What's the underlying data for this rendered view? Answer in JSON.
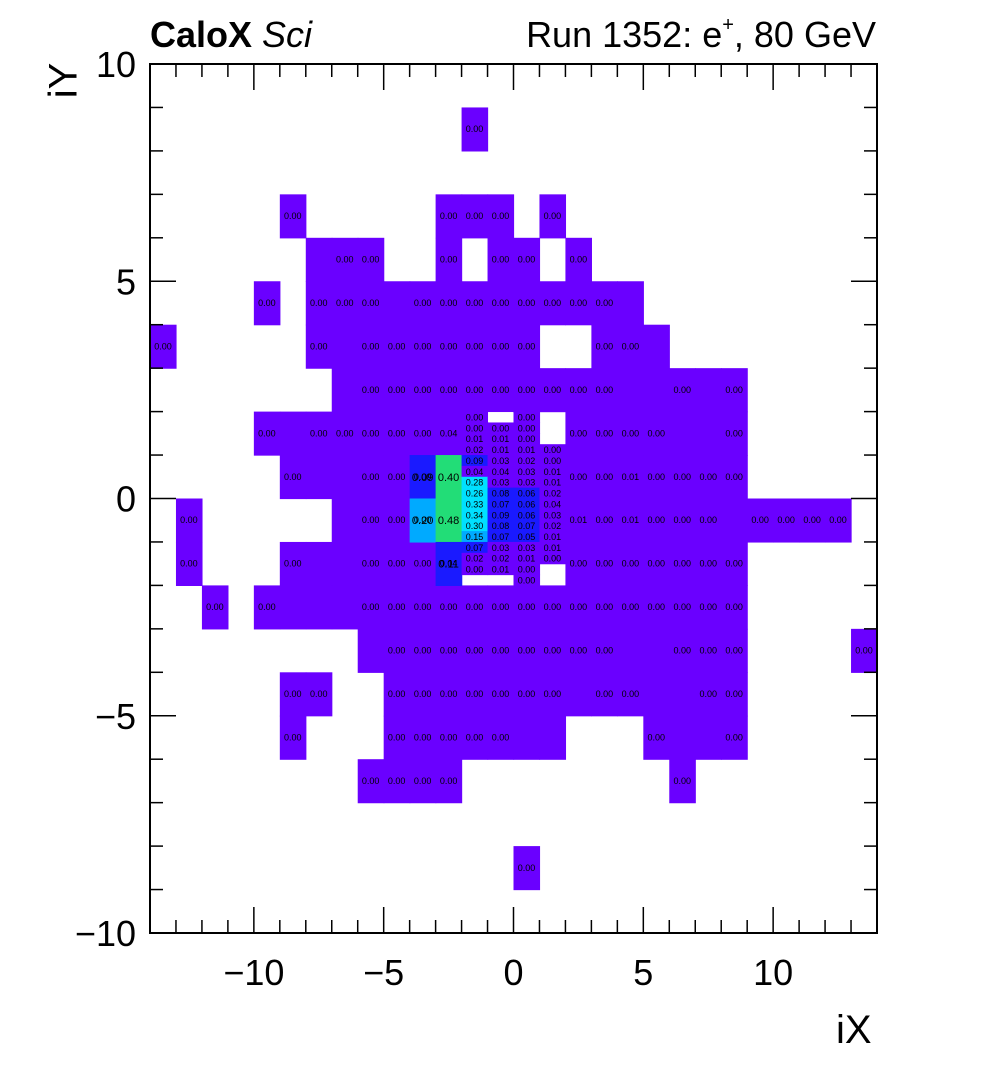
{
  "header": {
    "experiment_bold": "CaloX",
    "experiment_italic": "Sci",
    "run_prefix": "Run 1352: e",
    "run_sup": "+",
    "run_suffix": ", 80 GeV"
  },
  "chart_data": {
    "type": "heatmap",
    "xlabel": "iX",
    "ylabel": "iY",
    "xlim": [
      -14,
      14
    ],
    "ylim": [
      -10,
      10
    ],
    "xticks": [
      -10,
      -5,
      0,
      5,
      10
    ],
    "yticks": [
      -10,
      -5,
      0,
      5,
      10
    ],
    "xtick_labels": [
      "−10",
      "−5",
      "0",
      "5",
      "10"
    ],
    "ytick_labels": [
      "−10",
      "−5",
      "0",
      "5",
      "10"
    ],
    "colors": {
      "zero": "#6a00ff",
      "low": "#1a1aff",
      "mid": "#00aaff",
      "midhigh": "#00e0ff",
      "high": "#22dd77"
    },
    "coarse_cells": [
      {
        "x": -2,
        "y": 8,
        "v": 0.0
      },
      {
        "x": -9,
        "y": 6,
        "v": 0.0
      },
      {
        "x": -3,
        "y": 6,
        "v": 0.0
      },
      {
        "x": -2,
        "y": 6,
        "v": 0.0
      },
      {
        "x": -1,
        "y": 6,
        "v": 0.0
      },
      {
        "x": 1,
        "y": 6,
        "v": 0.0
      },
      {
        "x": -7,
        "y": 5,
        "v": 0.0
      },
      {
        "x": -6,
        "y": 5,
        "v": 0.0
      },
      {
        "x": -3,
        "y": 5,
        "v": 0.0
      },
      {
        "x": -1,
        "y": 5,
        "v": 0.0
      },
      {
        "x": 0,
        "y": 5,
        "v": 0.0
      },
      {
        "x": 2,
        "y": 5,
        "v": 0.0
      },
      {
        "x": -10,
        "y": 4,
        "v": 0.0
      },
      {
        "x": -8,
        "y": 4,
        "v": 0.0
      },
      {
        "x": -7,
        "y": 4,
        "v": 0.0
      },
      {
        "x": -6,
        "y": 4,
        "v": 0.0
      },
      {
        "x": -4,
        "y": 4,
        "v": 0.0
      },
      {
        "x": -3,
        "y": 4,
        "v": 0.0
      },
      {
        "x": -2,
        "y": 4,
        "v": 0.0
      },
      {
        "x": -1,
        "y": 4,
        "v": 0.0
      },
      {
        "x": 0,
        "y": 4,
        "v": 0.0
      },
      {
        "x": 1,
        "y": 4,
        "v": 0.0
      },
      {
        "x": 2,
        "y": 4,
        "v": 0.0
      },
      {
        "x": 3,
        "y": 4,
        "v": 0.0
      },
      {
        "x": -14,
        "y": 3,
        "v": 0.0
      },
      {
        "x": -8,
        "y": 3,
        "v": 0.0
      },
      {
        "x": -6,
        "y": 3,
        "v": 0.0
      },
      {
        "x": -5,
        "y": 3,
        "v": 0.0
      },
      {
        "x": -4,
        "y": 3,
        "v": 0.0
      },
      {
        "x": -3,
        "y": 3,
        "v": 0.0
      },
      {
        "x": -2,
        "y": 3,
        "v": 0.0
      },
      {
        "x": -1,
        "y": 3,
        "v": 0.0
      },
      {
        "x": 0,
        "y": 3,
        "v": 0.0
      },
      {
        "x": 3,
        "y": 3,
        "v": 0.0
      },
      {
        "x": 4,
        "y": 3,
        "v": 0.0
      },
      {
        "x": -6,
        "y": 2,
        "v": 0.0
      },
      {
        "x": -5,
        "y": 2,
        "v": 0.0
      },
      {
        "x": -4,
        "y": 2,
        "v": 0.0
      },
      {
        "x": -3,
        "y": 2,
        "v": 0.0
      },
      {
        "x": -2,
        "y": 2,
        "v": 0.0
      },
      {
        "x": -1,
        "y": 2,
        "v": 0.0
      },
      {
        "x": 0,
        "y": 2,
        "v": 0.0
      },
      {
        "x": 1,
        "y": 2,
        "v": 0.0
      },
      {
        "x": 2,
        "y": 2,
        "v": 0.0
      },
      {
        "x": 3,
        "y": 2,
        "v": 0.0
      },
      {
        "x": 6,
        "y": 2,
        "v": 0.0
      },
      {
        "x": 8,
        "y": 2,
        "v": 0.0
      },
      {
        "x": -10,
        "y": 1,
        "v": 0.0
      },
      {
        "x": -8,
        "y": 1,
        "v": 0.0
      },
      {
        "x": -7,
        "y": 1,
        "v": 0.0
      },
      {
        "x": -6,
        "y": 1,
        "v": 0.0
      },
      {
        "x": -5,
        "y": 1,
        "v": 0.0
      },
      {
        "x": -4,
        "y": 1,
        "v": 0.0
      },
      {
        "x": -3,
        "y": 1,
        "v": 0.04
      },
      {
        "x": 2,
        "y": 1,
        "v": 0.0
      },
      {
        "x": 3,
        "y": 1,
        "v": 0.0
      },
      {
        "x": 4,
        "y": 1,
        "v": 0.0
      },
      {
        "x": 5,
        "y": 1,
        "v": 0.0
      },
      {
        "x": 8,
        "y": 1,
        "v": 0.0
      },
      {
        "x": -9,
        "y": 0,
        "v": 0.0
      },
      {
        "x": -6,
        "y": 0,
        "v": 0.0
      },
      {
        "x": -5,
        "y": 0,
        "v": 0.0
      },
      {
        "x": -4,
        "y": 0,
        "v": 0.0
      },
      {
        "x": 2,
        "y": 0,
        "v": 0.0
      },
      {
        "x": 3,
        "y": 0,
        "v": 0.0
      },
      {
        "x": 4,
        "y": 0,
        "v": 0.01
      },
      {
        "x": 5,
        "y": 0,
        "v": 0.0
      },
      {
        "x": 6,
        "y": 0,
        "v": 0.0
      },
      {
        "x": 7,
        "y": 0,
        "v": 0.0
      },
      {
        "x": 8,
        "y": 0,
        "v": 0.0
      },
      {
        "x": -13,
        "y": -1,
        "v": 0.0
      },
      {
        "x": -6,
        "y": -1,
        "v": 0.0
      },
      {
        "x": -5,
        "y": -1,
        "v": 0.0
      },
      {
        "x": -4,
        "y": -1,
        "v": 0.0
      },
      {
        "x": 2,
        "y": -1,
        "v": 0.01
      },
      {
        "x": 3,
        "y": -1,
        "v": 0.0
      },
      {
        "x": 4,
        "y": -1,
        "v": 0.01
      },
      {
        "x": 5,
        "y": -1,
        "v": 0.0
      },
      {
        "x": 6,
        "y": -1,
        "v": 0.0
      },
      {
        "x": 7,
        "y": -1,
        "v": 0.0
      },
      {
        "x": 9,
        "y": -1,
        "v": 0.0
      },
      {
        "x": 10,
        "y": -1,
        "v": 0.0
      },
      {
        "x": 11,
        "y": -1,
        "v": 0.0
      },
      {
        "x": 12,
        "y": -1,
        "v": 0.0
      },
      {
        "x": -13,
        "y": -2,
        "v": 0.0
      },
      {
        "x": -9,
        "y": -2,
        "v": 0.0
      },
      {
        "x": -6,
        "y": -2,
        "v": 0.0
      },
      {
        "x": -5,
        "y": -2,
        "v": 0.0
      },
      {
        "x": -4,
        "y": -2,
        "v": 0.0
      },
      {
        "x": -3,
        "y": -2,
        "v": 0.04
      },
      {
        "x": 2,
        "y": -2,
        "v": 0.0
      },
      {
        "x": 3,
        "y": -2,
        "v": 0.0
      },
      {
        "x": 4,
        "y": -2,
        "v": 0.0
      },
      {
        "x": 5,
        "y": -2,
        "v": 0.0
      },
      {
        "x": 6,
        "y": -2,
        "v": 0.0
      },
      {
        "x": 7,
        "y": -2,
        "v": 0.0
      },
      {
        "x": 8,
        "y": -2,
        "v": 0.0
      },
      {
        "x": -12,
        "y": -3,
        "v": 0.0
      },
      {
        "x": -10,
        "y": -3,
        "v": 0.0
      },
      {
        "x": -6,
        "y": -3,
        "v": 0.0
      },
      {
        "x": -5,
        "y": -3,
        "v": 0.0
      },
      {
        "x": -4,
        "y": -3,
        "v": 0.0
      },
      {
        "x": -3,
        "y": -3,
        "v": 0.0
      },
      {
        "x": -2,
        "y": -3,
        "v": 0.0
      },
      {
        "x": -1,
        "y": -3,
        "v": 0.0
      },
      {
        "x": 0,
        "y": -3,
        "v": 0.0
      },
      {
        "x": 1,
        "y": -3,
        "v": 0.0
      },
      {
        "x": 2,
        "y": -3,
        "v": 0.0
      },
      {
        "x": 3,
        "y": -3,
        "v": 0.0
      },
      {
        "x": 4,
        "y": -3,
        "v": 0.0
      },
      {
        "x": 5,
        "y": -3,
        "v": 0.0
      },
      {
        "x": 6,
        "y": -3,
        "v": 0.0
      },
      {
        "x": 7,
        "y": -3,
        "v": 0.0
      },
      {
        "x": 8,
        "y": -3,
        "v": 0.0
      },
      {
        "x": -5,
        "y": -4,
        "v": 0.0
      },
      {
        "x": -4,
        "y": -4,
        "v": 0.0
      },
      {
        "x": -3,
        "y": -4,
        "v": 0.0
      },
      {
        "x": -2,
        "y": -4,
        "v": 0.0
      },
      {
        "x": -1,
        "y": -4,
        "v": 0.0
      },
      {
        "x": 0,
        "y": -4,
        "v": 0.0
      },
      {
        "x": 1,
        "y": -4,
        "v": 0.0
      },
      {
        "x": 2,
        "y": -4,
        "v": 0.0
      },
      {
        "x": 3,
        "y": -4,
        "v": 0.0
      },
      {
        "x": 6,
        "y": -4,
        "v": 0.0
      },
      {
        "x": 7,
        "y": -4,
        "v": 0.0
      },
      {
        "x": 8,
        "y": -4,
        "v": 0.0
      },
      {
        "x": 13,
        "y": -4,
        "v": 0.0
      },
      {
        "x": -9,
        "y": -5,
        "v": 0.0
      },
      {
        "x": -8,
        "y": -5,
        "v": 0.0
      },
      {
        "x": -5,
        "y": -5,
        "v": 0.0
      },
      {
        "x": -4,
        "y": -5,
        "v": 0.0
      },
      {
        "x": -3,
        "y": -5,
        "v": 0.0
      },
      {
        "x": -2,
        "y": -5,
        "v": 0.0
      },
      {
        "x": -1,
        "y": -5,
        "v": 0.0
      },
      {
        "x": 0,
        "y": -5,
        "v": 0.0
      },
      {
        "x": 1,
        "y": -5,
        "v": 0.0
      },
      {
        "x": 3,
        "y": -5,
        "v": 0.0
      },
      {
        "x": 4,
        "y": -5,
        "v": 0.0
      },
      {
        "x": 7,
        "y": -5,
        "v": 0.0
      },
      {
        "x": 8,
        "y": -5,
        "v": 0.0
      },
      {
        "x": -9,
        "y": -6,
        "v": 0.0
      },
      {
        "x": -5,
        "y": -6,
        "v": 0.0
      },
      {
        "x": -4,
        "y": -6,
        "v": 0.0
      },
      {
        "x": -3,
        "y": -6,
        "v": 0.0
      },
      {
        "x": -2,
        "y": -6,
        "v": 0.0
      },
      {
        "x": -1,
        "y": -6,
        "v": 0.0
      },
      {
        "x": 5,
        "y": -6,
        "v": 0.0
      },
      {
        "x": 8,
        "y": -6,
        "v": 0.0
      },
      {
        "x": -6,
        "y": -7,
        "v": 0.0
      },
      {
        "x": -5,
        "y": -7,
        "v": 0.0
      },
      {
        "x": -4,
        "y": -7,
        "v": 0.0
      },
      {
        "x": -3,
        "y": -7,
        "v": 0.0
      },
      {
        "x": 6,
        "y": -7,
        "v": 0.0
      },
      {
        "x": 0,
        "y": -9,
        "v": 0.0
      }
    ],
    "coarse_filled_unlabeled": [
      {
        "x": -8,
        "y": 5
      },
      {
        "x": -7,
        "y": 3
      },
      {
        "x": -5,
        "y": 4
      },
      {
        "x": 4,
        "y": 4
      },
      {
        "x": 5,
        "y": 3
      },
      {
        "x": -7,
        "y": 2
      },
      {
        "x": 4,
        "y": 2
      },
      {
        "x": 5,
        "y": 2
      },
      {
        "x": 7,
        "y": 2
      },
      {
        "x": -9,
        "y": 1
      },
      {
        "x": -2,
        "y": 2
      },
      {
        "x": 6,
        "y": 1
      },
      {
        "x": 7,
        "y": 1
      },
      {
        "x": -8,
        "y": 0
      },
      {
        "x": -7,
        "y": 0
      },
      {
        "x": -7,
        "y": -1
      },
      {
        "x": 8,
        "y": -1
      },
      {
        "x": -7,
        "y": -2
      },
      {
        "x": -8,
        "y": -2
      },
      {
        "x": -9,
        "y": -3
      },
      {
        "x": -8,
        "y": -3
      },
      {
        "x": -7,
        "y": -3
      },
      {
        "x": -6,
        "y": -4
      },
      {
        "x": 4,
        "y": -4
      },
      {
        "x": 5,
        "y": -4
      },
      {
        "x": 2,
        "y": -5
      },
      {
        "x": 5,
        "y": -5
      },
      {
        "x": 6,
        "y": -5
      },
      {
        "x": 0,
        "y": -6
      },
      {
        "x": 1,
        "y": -6
      },
      {
        "x": 6,
        "y": -6
      },
      {
        "x": 7,
        "y": -6
      }
    ],
    "fine_cells": [
      {
        "x": -4,
        "y": 0,
        "v": 0.09,
        "w": 1,
        "h": 1
      },
      {
        "x": -3,
        "y": 0,
        "v": 0.4,
        "w": 1,
        "h": 1
      },
      {
        "x": -4,
        "y": -1,
        "v": 0.2,
        "w": 1,
        "h": 1
      },
      {
        "x": -3,
        "y": -1,
        "v": 0.48,
        "w": 1,
        "h": 1
      },
      {
        "x": -3,
        "y": -2,
        "v": 0.11,
        "w": 1,
        "h": 1
      }
    ],
    "center_rows": [
      [
        "0.00",
        "",
        "0.00"
      ],
      [
        "0.00",
        "0.00",
        "0.00"
      ],
      [
        "0.01",
        "0.01",
        "0.00"
      ],
      [
        "0.02",
        "0.01",
        "0.01",
        "0.00"
      ],
      [
        "0.09",
        "0.03",
        "0.02",
        "0.00"
      ],
      [
        "0.04",
        "0.04",
        "0.03",
        "0.01"
      ],
      [
        "0.28",
        "0.03",
        "0.03",
        "0.01"
      ],
      [
        "0.26",
        "0.08",
        "0.06",
        "0.02"
      ],
      [
        "0.33",
        "0.07",
        "0.06",
        "0.04"
      ],
      [
        "0.34",
        "0.09",
        "0.06",
        "0.03"
      ],
      [
        "0.30",
        "0.08",
        "0.07",
        "0.02"
      ],
      [
        "0.15",
        "0.07",
        "0.05",
        "0.01"
      ],
      [
        "0.07",
        "0.03",
        "0.03",
        "0.01"
      ],
      [
        "0.02",
        "0.02",
        "0.01",
        "0.00"
      ],
      [
        "0.00",
        "0.01",
        "0.00"
      ],
      [
        "",
        "",
        "0.00"
      ]
    ]
  }
}
